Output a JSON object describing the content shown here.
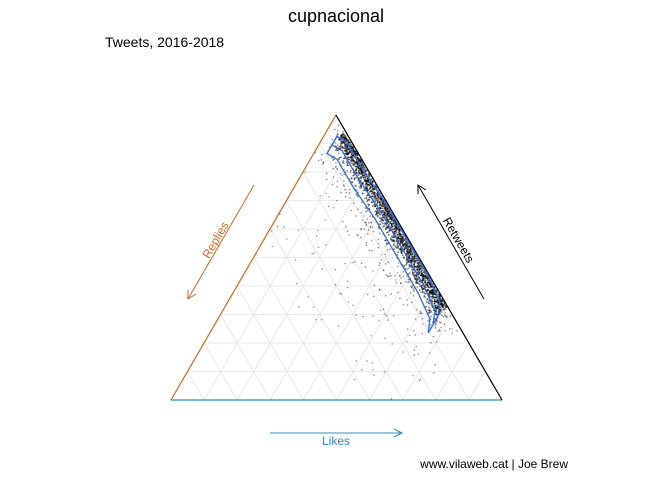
{
  "chart_data": {
    "type": "scatter",
    "title": "cupnacional",
    "subtitle": "Tweets, 2016-2018",
    "caption": "www.vilaweb.cat | Joe Brew",
    "axes": {
      "likes": {
        "label": "Likes",
        "color": "#2b8cc4"
      },
      "replies": {
        "label": "Replies",
        "color": "#d2691e"
      },
      "retweets": {
        "label": "Retweets",
        "color": "#000000"
      }
    },
    "grid": true,
    "series": [
      {
        "point_color": "#000000",
        "contour_color": "#2f6fe0",
        "note": "approximate; coordinates are (likes, replies, retweets) shares"
      }
    ],
    "density_core": [
      [
        0.04,
        0.04,
        0.92
      ],
      [
        0.08,
        0.02,
        0.9
      ],
      [
        0.18,
        0.02,
        0.8
      ],
      [
        0.3,
        0.01,
        0.69
      ],
      [
        0.43,
        0.01,
        0.56
      ],
      [
        0.56,
        0.01,
        0.43
      ],
      [
        0.64,
        0.02,
        0.34
      ],
      [
        0.66,
        0.05,
        0.29
      ]
    ]
  }
}
